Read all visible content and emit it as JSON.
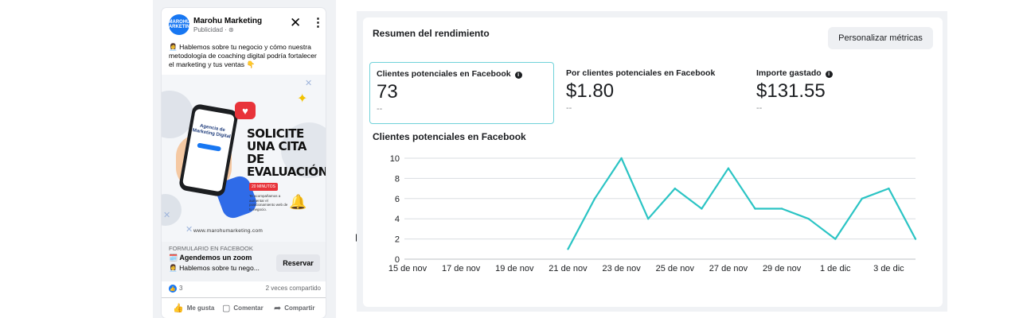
{
  "ad": {
    "page_name": "Marohu Marketing",
    "sponsored": "Publicidad · ⊛",
    "avatar_text": "MAROHU MARKETING",
    "body_text": "👩‍💼 Hablemos sobre tu negocio y cómo nuestra metodología de coaching digital podría fortalecer el marketing y tus ventas 👇",
    "image": {
      "phone_text": "Agencia de Marketing Digital",
      "headline": "SOLICITE UNA CITA DE EVALUACIÓN",
      "badge": "20 MINUTOS",
      "note": "Te acompañamos a aumentar el posicionamiento web de tu negocio.",
      "website": "www.marohumarketing.com"
    },
    "form_label": "FORMULARIO EN FACEBOOK",
    "form_title": "🗓️ Agendemos un zoom",
    "form_desc": "👩‍💼 Hablemos sobre tu nego...",
    "cta_label": "Reservar",
    "likes": "3",
    "shares": "2 veces compartido",
    "actions": {
      "like": "Me gusta",
      "comment": "Comentar",
      "share": "Compartir"
    },
    "icons": {
      "close": "close-icon",
      "more": "more-vertical-icon",
      "like": "thumbs-up-icon",
      "comment": "comment-icon",
      "share": "share-icon"
    }
  },
  "performance": {
    "title": "Resumen del rendimiento",
    "customize_label": "Personalizar métricas",
    "metrics": [
      {
        "label": "Clientes potenciales en Facebook",
        "value": "73",
        "compare": "--"
      },
      {
        "label": "Por clientes potenciales en Facebook",
        "value": "$1.80",
        "compare": "--"
      },
      {
        "label": "Importe gastado",
        "value": "$131.55",
        "compare": "--"
      }
    ],
    "chart_title": "Clientes potenciales en Facebook"
  },
  "chart_data": {
    "type": "line",
    "title": "Clientes potenciales en Facebook",
    "x": [
      "15 de nov",
      "16 de nov",
      "17 de nov",
      "18 de nov",
      "19 de nov",
      "20 de nov",
      "21 de nov",
      "22 de nov",
      "23 de nov",
      "24 de nov",
      "25 de nov",
      "26 de nov",
      "27 de nov",
      "28 de nov",
      "29 de nov",
      "30 de nov",
      "1 de dic",
      "2 de dic",
      "3 de dic",
      "4 de dic"
    ],
    "x_tick_labels": [
      "15 de nov",
      "17 de nov",
      "19 de nov",
      "21 de nov",
      "23 de nov",
      "25 de nov",
      "27 de nov",
      "29 de nov",
      "1 de dic",
      "3 de dic"
    ],
    "series": [
      {
        "values": [
          null,
          null,
          null,
          null,
          null,
          null,
          1,
          6,
          10,
          4,
          7,
          5,
          9,
          5,
          5,
          4,
          2,
          6,
          7,
          2
        ]
      }
    ],
    "yticks": [
      0,
      2,
      4,
      6,
      8,
      10
    ],
    "ylim": [
      0,
      10
    ],
    "grid": true,
    "line_color": "#2bc4c4"
  }
}
